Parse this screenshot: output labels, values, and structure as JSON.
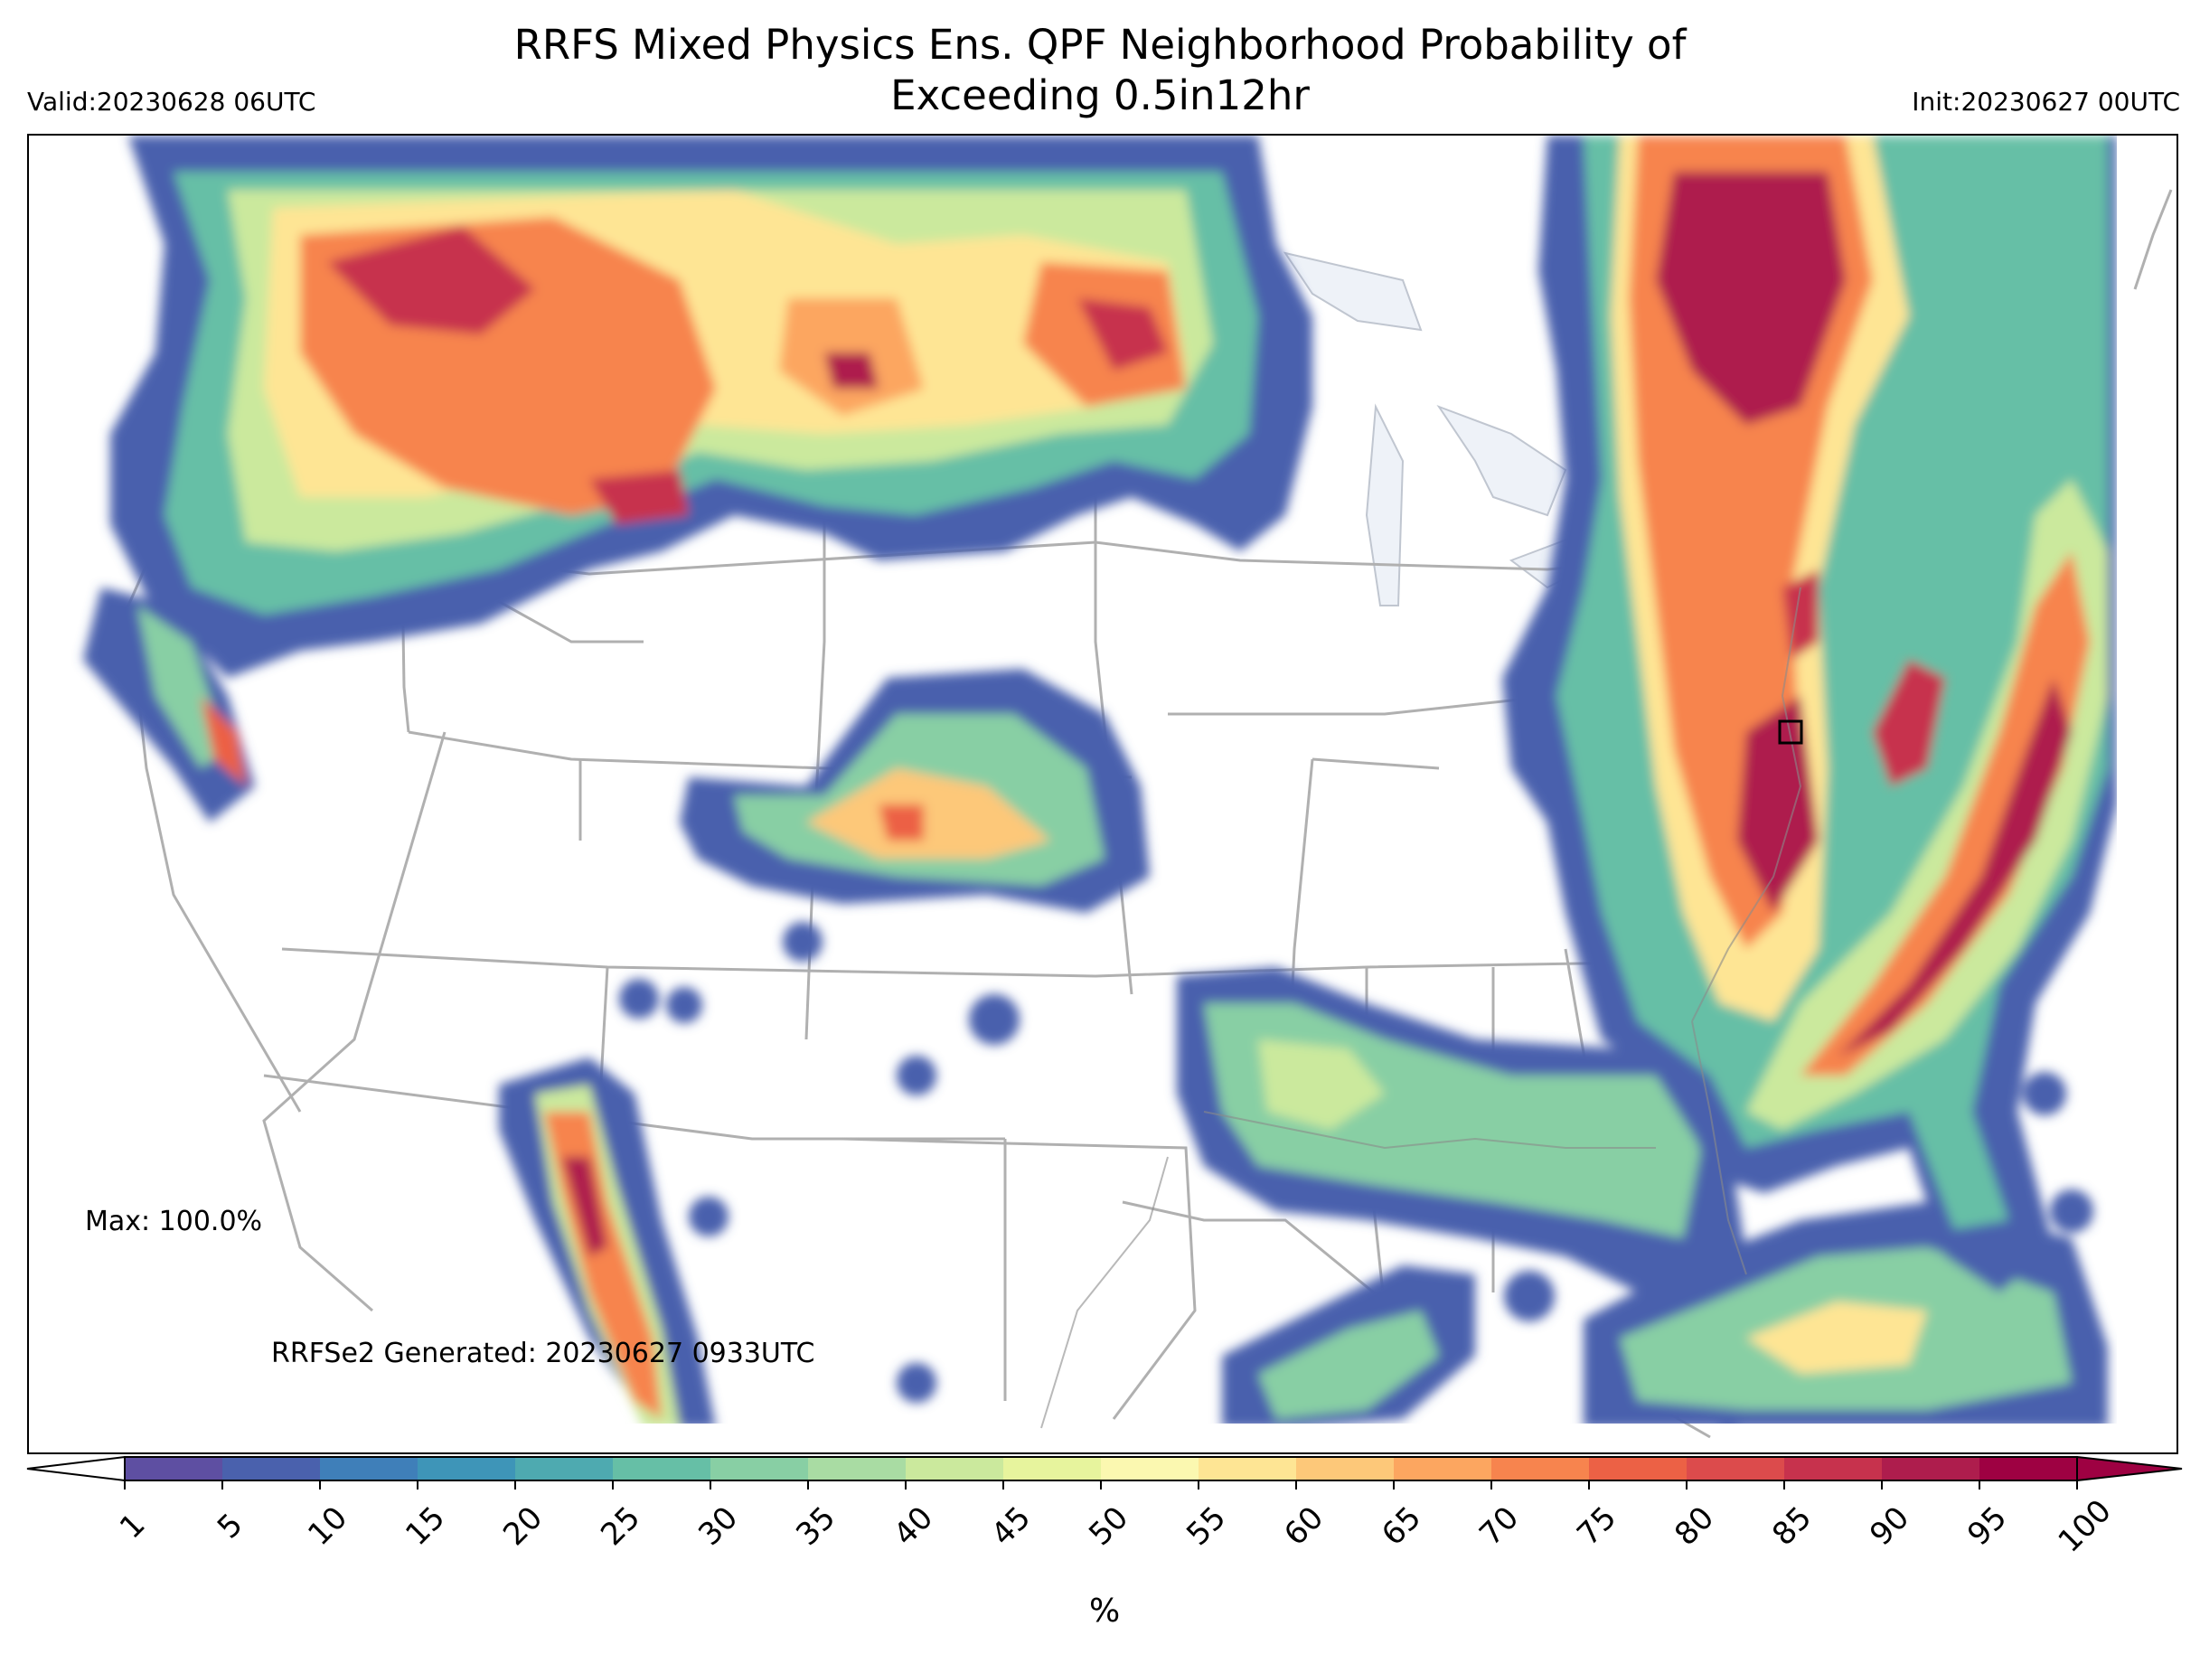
{
  "header": {
    "title_line1": "RRFS Mixed Physics Ens. QPF Neighborhood Probability of",
    "title_line2": "Exceeding 0.5in12hr",
    "valid": "Valid:20230628 06UTC",
    "init": "Init:20230627 00UTC"
  },
  "map": {
    "max_label": "Max: 100.0%",
    "generated_label": "RRFSe2 Generated: 20230627 0933UTC",
    "land_color": "#ffffff",
    "lake_color": "#eef2f8",
    "boundary_color": "#b0b0b0",
    "marker_icon": "square-marker-icon"
  },
  "colorbar": {
    "ticks": [
      "1",
      "5",
      "10",
      "15",
      "20",
      "25",
      "30",
      "35",
      "40",
      "45",
      "50",
      "55",
      "60",
      "65",
      "70",
      "75",
      "80",
      "85",
      "90",
      "95",
      "100"
    ],
    "colors": [
      "#5e4fa2",
      "#4a61ad",
      "#3f7fb9",
      "#3e95b8",
      "#4eaab0",
      "#66bfa6",
      "#88cfa4",
      "#a9dca3",
      "#cbe99d",
      "#e7f49d",
      "#fbf8b0",
      "#fee594",
      "#fdc879",
      "#fca660",
      "#f7844e",
      "#ec6145",
      "#dc4b4c",
      "#c7324d",
      "#ae1d4d",
      "#9e0142"
    ],
    "under_color": "#ffffff",
    "over_color": "#9e0142",
    "label": "%"
  }
}
